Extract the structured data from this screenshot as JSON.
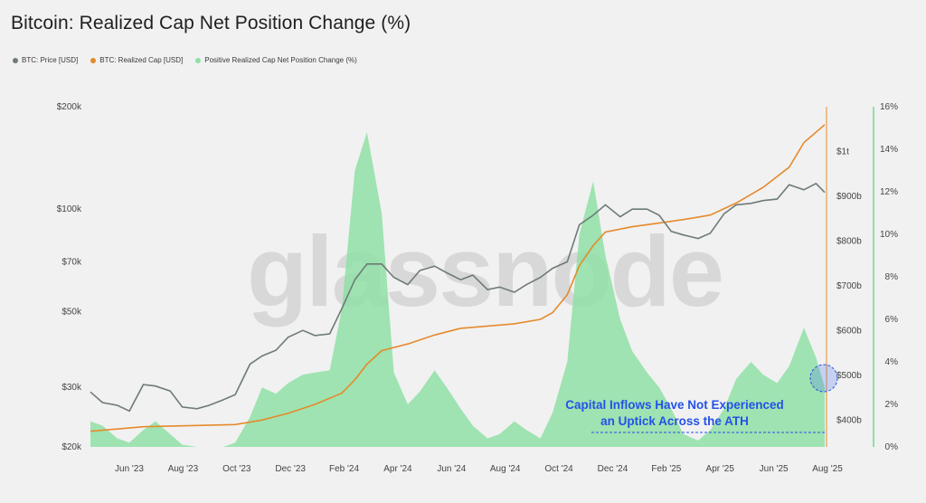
{
  "title": "Bitcoin: Realized Cap Net Position Change (%)",
  "legend": [
    {
      "label": "BTC: Price [USD]",
      "color": "#6e7b77"
    },
    {
      "label": "BTC: Realized Cap [USD]",
      "color": "#e58a2c"
    },
    {
      "label": "Positive Realized Cap Net Position Change (%)",
      "color": "#8fe0a6"
    }
  ],
  "watermark": "glassnode",
  "annotation": {
    "line1": "Capital Inflows Have Not Experienced",
    "line2": "an Uptick Across the ATH",
    "color": "#2452e8"
  },
  "chart_data": {
    "type": "line",
    "title": "Bitcoin: Realized Cap Net Position Change (%)",
    "x_tick_labels": [
      "Jun '23",
      "Aug '23",
      "Oct '23",
      "Dec '23",
      "Feb '24",
      "Apr '24",
      "Jun '24",
      "Aug '24",
      "Oct '24",
      "Dec '24",
      "Feb '25",
      "Apr '25",
      "Jun '25",
      "Aug '25"
    ],
    "x_start": "2023-05-01",
    "x_end": "2025-08-25",
    "y_left": {
      "scale": "log",
      "range": [
        20000,
        200000
      ],
      "ticks": [
        {
          "v": 20000,
          "label": "$20k"
        },
        {
          "v": 30000,
          "label": "$30k"
        },
        {
          "v": 50000,
          "label": "$50k"
        },
        {
          "v": 70000,
          "label": "$70k"
        },
        {
          "v": 100000,
          "label": "$100k"
        },
        {
          "v": 200000,
          "label": "$200k"
        }
      ]
    },
    "y_realized": {
      "scale": "linear",
      "range": [
        340,
        1100
      ],
      "unit": "billion USD",
      "ticks": [
        {
          "v": 400,
          "label": "$400b"
        },
        {
          "v": 500,
          "label": "$500b"
        },
        {
          "v": 600,
          "label": "$600b"
        },
        {
          "v": 700,
          "label": "$700b"
        },
        {
          "v": 800,
          "label": "$800b"
        },
        {
          "v": 900,
          "label": "$900b"
        },
        {
          "v": 1000,
          "label": "$1t"
        }
      ]
    },
    "y_right": {
      "scale": "linear",
      "range": [
        0,
        16
      ],
      "unit": "%",
      "ticks": [
        {
          "v": 0,
          "label": "0%"
        },
        {
          "v": 2,
          "label": "2%"
        },
        {
          "v": 4,
          "label": "4%"
        },
        {
          "v": 6,
          "label": "6%"
        },
        {
          "v": 8,
          "label": "8%"
        },
        {
          "v": 10,
          "label": "10%"
        },
        {
          "v": 12,
          "label": "12%"
        },
        {
          "v": 14,
          "label": "14%"
        },
        {
          "v": 16,
          "label": "16%"
        }
      ]
    },
    "series": [
      {
        "name": "BTC: Price [USD]",
        "color": "#6e7b77",
        "x": [
          "2023-05-01",
          "2023-05-15",
          "2023-06-01",
          "2023-06-15",
          "2023-07-01",
          "2023-07-15",
          "2023-08-01",
          "2023-08-15",
          "2023-09-01",
          "2023-09-15",
          "2023-10-01",
          "2023-10-15",
          "2023-11-01",
          "2023-11-15",
          "2023-12-01",
          "2023-12-15",
          "2024-01-01",
          "2024-01-15",
          "2024-02-01",
          "2024-02-15",
          "2024-03-01",
          "2024-03-15",
          "2024-04-01",
          "2024-04-15",
          "2024-05-01",
          "2024-05-15",
          "2024-06-01",
          "2024-06-15",
          "2024-07-01",
          "2024-07-15",
          "2024-08-01",
          "2024-08-15",
          "2024-09-01",
          "2024-09-15",
          "2024-10-01",
          "2024-10-15",
          "2024-11-01",
          "2024-11-15",
          "2024-12-01",
          "2024-12-15",
          "2025-01-01",
          "2025-01-15",
          "2025-02-01",
          "2025-02-15",
          "2025-03-01",
          "2025-03-15",
          "2025-04-01",
          "2025-04-15",
          "2025-05-01",
          "2025-05-15",
          "2025-06-01",
          "2025-06-15",
          "2025-07-01",
          "2025-07-15",
          "2025-08-01",
          "2025-08-15",
          "2025-08-25"
        ],
        "values": [
          29000,
          27000,
          26500,
          25500,
          30500,
          30200,
          29200,
          26200,
          25900,
          26500,
          27500,
          28500,
          35000,
          37000,
          38500,
          42000,
          44000,
          42500,
          43000,
          51000,
          62000,
          69000,
          69000,
          63000,
          60000,
          66000,
          68000,
          65000,
          62000,
          64000,
          58000,
          59000,
          57000,
          60000,
          63000,
          67000,
          70000,
          90000,
          96000,
          103000,
          95000,
          100000,
          100000,
          96000,
          86000,
          84000,
          82000,
          85000,
          97000,
          103000,
          104000,
          106000,
          107000,
          118000,
          114000,
          119000,
          112000
        ]
      },
      {
        "name": "BTC: Realized Cap [USD]",
        "color": "#e58a2c",
        "x": [
          "2023-05-01",
          "2023-07-01",
          "2023-09-01",
          "2023-10-15",
          "2023-11-15",
          "2023-12-15",
          "2024-01-15",
          "2024-02-15",
          "2024-03-01",
          "2024-03-15",
          "2024-04-01",
          "2024-05-01",
          "2024-06-01",
          "2024-07-01",
          "2024-08-01",
          "2024-09-01",
          "2024-10-01",
          "2024-10-15",
          "2024-11-01",
          "2024-11-15",
          "2024-12-01",
          "2024-12-15",
          "2025-01-15",
          "2025-02-15",
          "2025-03-15",
          "2025-04-15",
          "2025-05-15",
          "2025-06-15",
          "2025-07-15",
          "2025-08-01",
          "2025-08-25"
        ],
        "values": [
          375,
          385,
          388,
          390,
          400,
          415,
          435,
          460,
          490,
          525,
          555,
          570,
          590,
          605,
          610,
          615,
          625,
          640,
          680,
          745,
          790,
          820,
          832,
          840,
          848,
          858,
          885,
          920,
          965,
          1020,
          1060
        ]
      },
      {
        "name": "Positive Realized Cap Net Position Change (%)",
        "color": "#8fe0a6",
        "x": [
          "2023-05-01",
          "2023-05-15",
          "2023-06-01",
          "2023-06-15",
          "2023-07-01",
          "2023-07-15",
          "2023-08-01",
          "2023-08-15",
          "2023-09-01",
          "2023-09-15",
          "2023-10-01",
          "2023-10-15",
          "2023-11-01",
          "2023-11-15",
          "2023-12-01",
          "2023-12-15",
          "2024-01-01",
          "2024-01-15",
          "2024-02-01",
          "2024-02-15",
          "2024-03-01",
          "2024-03-15",
          "2024-04-01",
          "2024-04-15",
          "2024-05-01",
          "2024-05-15",
          "2024-06-01",
          "2024-06-15",
          "2024-07-01",
          "2024-07-15",
          "2024-08-01",
          "2024-08-15",
          "2024-09-01",
          "2024-09-15",
          "2024-10-01",
          "2024-10-15",
          "2024-11-01",
          "2024-11-15",
          "2024-12-01",
          "2024-12-15",
          "2025-01-01",
          "2025-01-15",
          "2025-02-01",
          "2025-02-15",
          "2025-03-01",
          "2025-03-15",
          "2025-04-01",
          "2025-04-15",
          "2025-05-01",
          "2025-05-15",
          "2025-06-01",
          "2025-06-15",
          "2025-07-01",
          "2025-07-15",
          "2025-08-01",
          "2025-08-15",
          "2025-08-25"
        ],
        "values": [
          1.2,
          1.0,
          0.4,
          0.2,
          0.8,
          1.2,
          0.6,
          0.1,
          0,
          0,
          0,
          0.2,
          1.4,
          2.8,
          2.5,
          3.0,
          3.4,
          3.5,
          3.6,
          6.5,
          13,
          14.8,
          11,
          3.5,
          2.0,
          2.6,
          3.6,
          2.8,
          1.8,
          1.0,
          0.4,
          0.6,
          1.2,
          0.8,
          0.4,
          1.6,
          4.0,
          10.0,
          12.5,
          9.0,
          6.0,
          4.5,
          3.5,
          2.8,
          1.8,
          0.6,
          0.3,
          0.8,
          1.8,
          3.2,
          4.0,
          3.4,
          3.0,
          3.8,
          5.6,
          4.2,
          2.8
        ]
      }
    ],
    "grid": false,
    "legend_position": "top-left"
  }
}
